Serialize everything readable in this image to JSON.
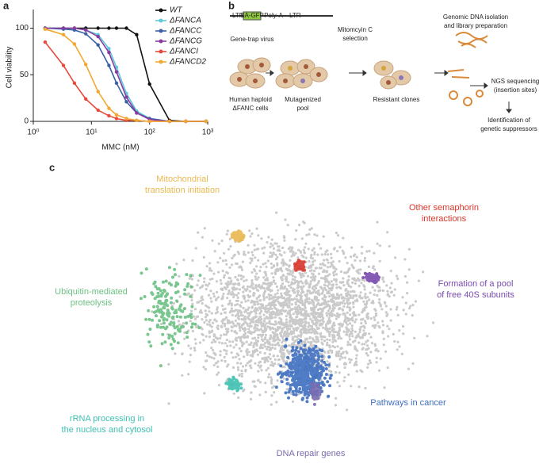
{
  "chart_data": {
    "type": "line",
    "panel": "a",
    "x": [
      1.6,
      3.3,
      5.1,
      8,
      13,
      20,
      27,
      40,
      60,
      100,
      220,
      420,
      940
    ],
    "xlog": true,
    "xlim": [
      1,
      1000
    ],
    "xticks": [
      {
        "value": 1,
        "label": "10⁰"
      },
      {
        "value": 10,
        "label": "10¹"
      },
      {
        "value": 100,
        "label": "10²"
      },
      {
        "value": 1000,
        "label": "10³"
      }
    ],
    "ylim": [
      0,
      120
    ],
    "yticks": [
      0,
      50,
      100
    ],
    "xlabel": "MMC (nM)",
    "ylabel": "Cell viability",
    "series": [
      {
        "name": "WT",
        "color": "#111111",
        "values": [
          100,
          100,
          100,
          100,
          100,
          100,
          100,
          100,
          93,
          40,
          1,
          0,
          0
        ]
      },
      {
        "name": "ΔFANCA",
        "color": "#5cc9dc",
        "values": [
          100,
          100,
          100,
          98,
          93,
          78,
          58,
          30,
          11,
          3,
          0,
          0,
          0
        ]
      },
      {
        "name": "ΔFANCC",
        "color": "#3a60a8",
        "values": [
          100,
          99,
          98,
          94,
          82,
          60,
          41,
          21,
          9,
          3,
          0,
          0,
          0
        ]
      },
      {
        "name": "ΔFANCG",
        "color": "#8b3a9e",
        "values": [
          100,
          100,
          100,
          98,
          91,
          74,
          53,
          26,
          9,
          2,
          0,
          0,
          0
        ]
      },
      {
        "name": "ΔFANCI",
        "color": "#e84a3a",
        "values": [
          85,
          60,
          41,
          24,
          12,
          6,
          3,
          1,
          1,
          0,
          0,
          0,
          0
        ]
      },
      {
        "name": "ΔFANCD2",
        "color": "#f0a830",
        "values": [
          99,
          93,
          83,
          61,
          32,
          14,
          7,
          3,
          1,
          0,
          0,
          0,
          0
        ]
      }
    ]
  },
  "diagram": {
    "panel": "b",
    "construct": [
      "LTR",
      "SA-GFP",
      "Poly-A",
      "LTR"
    ],
    "virus": "Gene-trap virus",
    "cells": [
      "Human haploid",
      "ΔFANC cells"
    ],
    "pool": [
      "Mutagenized",
      "pool"
    ],
    "selection": [
      "Mitomcyin C",
      "selection"
    ],
    "clones": "Resistant clones",
    "isolation": [
      "Genomic DNA isolation",
      "and library preparation"
    ],
    "ngs": [
      "NGS sequencing",
      "(insertion sites)"
    ],
    "identification": [
      "Identification of",
      "genetic suppressors"
    ]
  },
  "network": {
    "panel": "c",
    "clusters": [
      {
        "label": [
          "Mitochondrial",
          "translation initiation"
        ],
        "color": "#e8b850"
      },
      {
        "label": [
          "Other semaphorin",
          "interactions"
        ],
        "color": "#d9362b"
      },
      {
        "label": [
          "Formation of a pool",
          "of free 40S subunits"
        ],
        "color": "#7a4bb0"
      },
      {
        "label": [
          "Ubiquitin-mediated",
          "proteolysis"
        ],
        "color": "#6cc083"
      },
      {
        "label": [
          "rRNA processing in",
          "the nucleus and cytosol"
        ],
        "color": "#3fbfb0"
      },
      {
        "label": [
          "Pathways in cancer"
        ],
        "color": "#3e6fc0"
      },
      {
        "label": [
          "DNA repair genes"
        ],
        "color": "#7a6bb0"
      }
    ]
  }
}
